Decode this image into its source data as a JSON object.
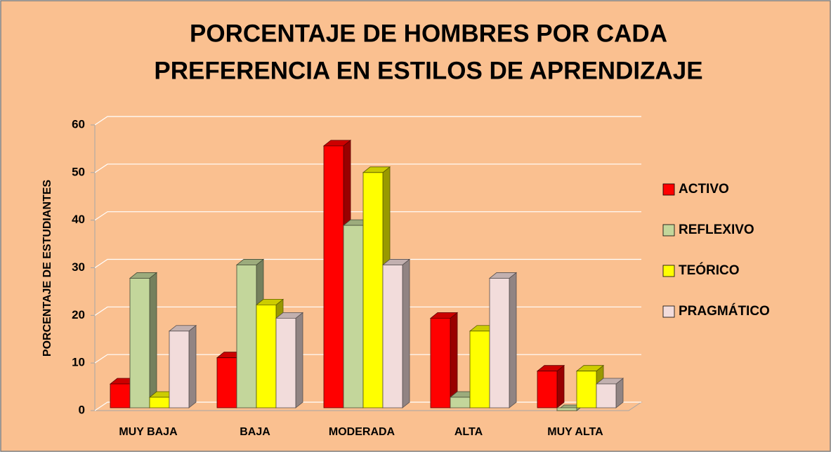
{
  "chart_data": {
    "type": "bar3d",
    "title": [
      "PORCENTAJE DE HOMBRES POR CADA",
      "PREFERENCIA EN ESTILOS DE APRENDIZAJE"
    ],
    "y_label": "PORCENTAJE DE ESTUDIANTES",
    "categories": [
      "MUY BAJA",
      "BAJA",
      "MODERADA",
      "ALTA",
      "MUY ALTA"
    ],
    "series": [
      {
        "name": "ACTIVO",
        "color": "#ff0000",
        "values": [
          5.6,
          11.1,
          55.6,
          19.4,
          8.3
        ]
      },
      {
        "name": "REFLEXIVO",
        "color": "#c3d69b",
        "values": [
          27.8,
          30.6,
          38.9,
          2.8,
          0
        ]
      },
      {
        "name": "TEÓRICO",
        "color": "#ffff00",
        "values": [
          2.8,
          22.2,
          50,
          16.7,
          8.3
        ]
      },
      {
        "name": "PRAGMÁTICO",
        "color": "#f2dcdb",
        "values": [
          16.7,
          19.4,
          30.6,
          27.8,
          5.6
        ]
      }
    ],
    "ylim": [
      0,
      60
    ],
    "yticks": [
      0,
      10,
      20,
      30,
      40,
      50,
      60
    ],
    "grid": true,
    "legend": "right"
  }
}
